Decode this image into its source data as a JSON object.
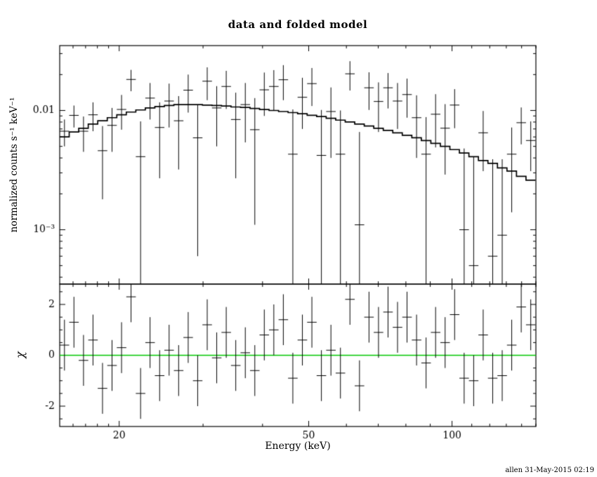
{
  "page": {
    "background": "#ffffff",
    "foreground": "#000000"
  },
  "chart_data": {
    "type": "scatter",
    "subtype": "xspec-data-and-folded-model-with-chi-residuals",
    "title": "data and folded model",
    "xlabel": "Energy (keV)",
    "ylabel_top": "normalized counts s⁻¹ keV⁻¹",
    "ylabel_bottom": "χ",
    "caption": "allen 31-May-2015 02:19",
    "x_scale": "log",
    "xlim": [
      15,
      150
    ],
    "x_major_ticks": [
      20,
      50,
      100
    ],
    "x_major_labels": [
      "20",
      "50",
      "100"
    ],
    "x_minor_ticks": [
      16,
      17,
      18,
      19,
      30,
      40,
      60,
      70,
      80,
      90,
      110,
      120,
      130,
      140,
      150
    ],
    "grid": false,
    "legend": "none",
    "top_panel": {
      "y_scale": "log",
      "ylim": [
        0.00035,
        0.035
      ],
      "y_major_ticks": [
        0.001,
        0.01
      ],
      "y_major_labels": [
        "10⁻³",
        "0.01"
      ],
      "y_minor_ticks": [
        0.0004,
        0.0005,
        0.0006,
        0.0007,
        0.0008,
        0.0009,
        0.002,
        0.003,
        0.004,
        0.005,
        0.006,
        0.007,
        0.008,
        0.009,
        0.02,
        0.03
      ]
    },
    "bottom_panel": {
      "y_scale": "linear",
      "ylim": [
        -2.8,
        2.8
      ],
      "y_major_ticks": [
        -2,
        0,
        2
      ],
      "y_major_labels": [
        "-2",
        "0",
        "2"
      ],
      "y_minor_ticks": [
        -2.5,
        -1.5,
        -1,
        -0.5,
        0.5,
        1,
        1.5,
        2.5
      ],
      "zero_line_color": "#00c800"
    },
    "series": [
      {
        "name": "data",
        "marker": "cross-with-errorbar",
        "color": "#000000",
        "x": [
          15.35,
          16.07,
          16.83,
          17.62,
          18.45,
          19.32,
          20.23,
          21.18,
          22.18,
          23.22,
          24.32,
          25.46,
          26.66,
          27.92,
          29.23,
          30.61,
          32.05,
          33.56,
          35.14,
          36.8,
          38.53,
          40.34,
          42.24,
          44.23,
          46.31,
          48.5,
          50.78,
          53.17,
          55.68,
          58.3,
          61.04,
          63.92,
          66.93,
          70.08,
          73.38,
          76.83,
          80.45,
          84.24,
          88.21,
          92.36,
          96.71,
          101.26,
          106.03,
          111.02,
          116.25,
          121.72,
          127.45,
          133.45,
          139.73,
          146.31
        ],
        "y": [
          0.0067,
          0.0091,
          0.0067,
          0.0092,
          0.0046,
          0.0075,
          0.0102,
          0.0182,
          0.0041,
          0.0127,
          0.0072,
          0.012,
          0.0082,
          0.0148,
          0.0059,
          0.0176,
          0.0105,
          0.0159,
          0.0084,
          0.0112,
          0.0069,
          0.0149,
          0.0159,
          0.0181,
          0.0043,
          0.0129,
          0.0168,
          0.0042,
          0.0098,
          0.0043,
          0.0203,
          0.0011,
          0.0155,
          0.0119,
          0.0155,
          0.012,
          0.0136,
          0.0087,
          0.0043,
          0.0093,
          0.0071,
          0.0111,
          0.001,
          0.0005,
          0.0065,
          0.0006,
          0.0009,
          0.0043,
          0.0079,
          0.0056
        ],
        "yerr": [
          0.0017,
          0.0019,
          0.0022,
          0.0025,
          0.0028,
          0.003,
          0.0033,
          0.0037,
          0.004,
          0.0043,
          0.0045,
          0.0048,
          0.005,
          0.0052,
          0.0053,
          0.0054,
          0.0055,
          0.0056,
          0.0057,
          0.0058,
          0.0058,
          0.0059,
          0.0059,
          0.0059,
          0.0059,
          0.0059,
          0.0059,
          0.0059,
          0.0058,
          0.0057,
          0.0056,
          0.0055,
          0.0054,
          0.0053,
          0.0051,
          0.005,
          0.0049,
          0.0047,
          0.0045,
          0.0044,
          0.0042,
          0.004,
          0.0038,
          0.0036,
          0.0034,
          0.0033,
          0.003,
          0.0029,
          0.0027,
          0.0025
        ]
      },
      {
        "name": "folded model",
        "style": "stepped-histogram-line",
        "color": "#000000",
        "x": [
          15.35,
          16.07,
          16.83,
          17.62,
          18.45,
          19.32,
          20.23,
          21.18,
          22.18,
          23.22,
          24.32,
          25.46,
          26.66,
          27.92,
          29.23,
          30.61,
          32.05,
          33.56,
          35.14,
          36.8,
          38.53,
          40.34,
          42.24,
          44.23,
          46.31,
          48.5,
          50.78,
          53.17,
          55.68,
          58.3,
          61.04,
          63.92,
          66.93,
          70.08,
          73.38,
          76.83,
          80.45,
          84.24,
          88.21,
          92.36,
          96.71,
          101.26,
          106.03,
          111.02,
          116.25,
          121.72,
          127.45,
          133.45,
          139.73,
          146.31
        ],
        "y": [
          0.006,
          0.0066,
          0.0071,
          0.0077,
          0.0082,
          0.0087,
          0.0092,
          0.0097,
          0.0101,
          0.0105,
          0.0108,
          0.011,
          0.0112,
          0.0112,
          0.0112,
          0.0111,
          0.011,
          0.0109,
          0.0107,
          0.0106,
          0.0104,
          0.0102,
          0.01,
          0.0098,
          0.0096,
          0.0094,
          0.0091,
          0.0089,
          0.0086,
          0.0083,
          0.008,
          0.0077,
          0.0074,
          0.0071,
          0.0068,
          0.0065,
          0.0062,
          0.0059,
          0.0056,
          0.0053,
          0.005,
          0.0047,
          0.0044,
          0.0041,
          0.0038,
          0.0036,
          0.0033,
          0.0031,
          0.0028,
          0.0026
        ]
      },
      {
        "name": "chi",
        "marker": "cross-with-errorbar",
        "color": "#000000",
        "chierr": 1,
        "x": [
          15.35,
          16.07,
          16.83,
          17.62,
          18.45,
          19.32,
          20.23,
          21.18,
          22.18,
          23.22,
          24.32,
          25.46,
          26.66,
          27.92,
          29.23,
          30.61,
          32.05,
          33.56,
          35.14,
          36.8,
          38.53,
          40.34,
          42.24,
          44.23,
          46.31,
          48.5,
          50.78,
          53.17,
          55.68,
          58.3,
          61.04,
          63.92,
          66.93,
          70.08,
          73.38,
          76.83,
          80.45,
          84.24,
          88.21,
          92.36,
          96.71,
          101.26,
          106.03,
          111.02,
          116.25,
          121.72,
          127.45,
          133.45,
          139.73,
          146.31
        ],
        "chi": [
          0.4,
          1.3,
          -0.2,
          0.6,
          -1.3,
          -0.4,
          0.3,
          2.3,
          -1.5,
          0.5,
          -0.8,
          0.2,
          -0.6,
          0.7,
          -1.0,
          1.2,
          -0.1,
          0.9,
          -0.4,
          0.1,
          -0.6,
          0.8,
          1.0,
          1.4,
          -0.9,
          0.6,
          1.3,
          -0.8,
          0.2,
          -0.7,
          2.2,
          -1.2,
          1.5,
          0.9,
          1.7,
          1.1,
          1.5,
          0.6,
          -0.3,
          0.9,
          0.5,
          1.6,
          -0.9,
          -1.0,
          0.8,
          -0.9,
          -0.8,
          0.4,
          1.9,
          1.2
        ]
      }
    ]
  }
}
